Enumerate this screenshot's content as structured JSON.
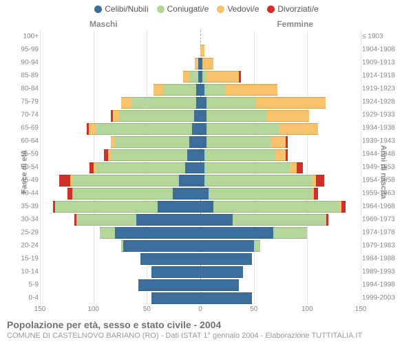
{
  "legend": {
    "items": [
      {
        "label": "Celibi/Nubili",
        "color": "#3b6e9b"
      },
      {
        "label": "Coniugati/e",
        "color": "#b4d69a"
      },
      {
        "label": "Vedovi/e",
        "color": "#f6c36a"
      },
      {
        "label": "Divorziati/e",
        "color": "#d02f2a"
      }
    ]
  },
  "gender": {
    "male": "Maschi",
    "female": "Femmine"
  },
  "axisLeftTitle": "Fasce di età",
  "axisRightTitle": "Anni di nascita",
  "xAxis": {
    "max": 150,
    "ticks": [
      150,
      100,
      50,
      0,
      50,
      100,
      150
    ]
  },
  "colors": {
    "single": "#3b6e9b",
    "married": "#b4d69a",
    "widowed": "#f6c36a",
    "divorced": "#d02f2a",
    "grid": "#e4e4e4",
    "center": "#aaaaaa"
  },
  "rows": [
    {
      "age": "100+",
      "birth": "≤ 1903",
      "m": {
        "single": 0,
        "married": 0,
        "widowed": 0,
        "divorced": 0
      },
      "f": {
        "single": 0,
        "married": 0,
        "widowed": 0,
        "divorced": 0
      }
    },
    {
      "age": "95-99",
      "birth": "1904-1908",
      "m": {
        "single": 0,
        "married": 0,
        "widowed": 0,
        "divorced": 0
      },
      "f": {
        "single": 0,
        "married": 0,
        "widowed": 4,
        "divorced": 0
      }
    },
    {
      "age": "90-94",
      "birth": "1909-1913",
      "m": {
        "single": 2,
        "married": 0,
        "widowed": 3,
        "divorced": 0
      },
      "f": {
        "single": 2,
        "married": 0,
        "widowed": 10,
        "divorced": 0
      }
    },
    {
      "age": "85-89",
      "birth": "1914-1918",
      "m": {
        "single": 2,
        "married": 8,
        "widowed": 6,
        "divorced": 0
      },
      "f": {
        "single": 2,
        "married": 4,
        "widowed": 30,
        "divorced": 2
      }
    },
    {
      "age": "80-84",
      "birth": "1919-1923",
      "m": {
        "single": 4,
        "married": 30,
        "widowed": 10,
        "divorced": 0
      },
      "f": {
        "single": 4,
        "married": 20,
        "widowed": 48,
        "divorced": 0
      }
    },
    {
      "age": "75-79",
      "birth": "1924-1928",
      "m": {
        "single": 4,
        "married": 60,
        "widowed": 10,
        "divorced": 0
      },
      "f": {
        "single": 6,
        "married": 46,
        "widowed": 65,
        "divorced": 0
      }
    },
    {
      "age": "70-74",
      "birth": "1929-1933",
      "m": {
        "single": 6,
        "married": 70,
        "widowed": 6,
        "divorced": 2
      },
      "f": {
        "single": 6,
        "married": 56,
        "widowed": 40,
        "divorced": 0
      }
    },
    {
      "age": "65-69",
      "birth": "1934-1938",
      "m": {
        "single": 8,
        "married": 90,
        "widowed": 6,
        "divorced": 2
      },
      "f": {
        "single": 6,
        "married": 68,
        "widowed": 36,
        "divorced": 0
      }
    },
    {
      "age": "60-64",
      "birth": "1939-1943",
      "m": {
        "single": 10,
        "married": 70,
        "widowed": 4,
        "divorced": 0
      },
      "f": {
        "single": 6,
        "married": 60,
        "widowed": 14,
        "divorced": 2
      }
    },
    {
      "age": "55-59",
      "birth": "1944-1948",
      "m": {
        "single": 12,
        "married": 72,
        "widowed": 2,
        "divorced": 4
      },
      "f": {
        "single": 4,
        "married": 66,
        "widowed": 10,
        "divorced": 2
      }
    },
    {
      "age": "50-54",
      "birth": "1949-1953",
      "m": {
        "single": 14,
        "married": 84,
        "widowed": 2,
        "divorced": 4
      },
      "f": {
        "single": 4,
        "married": 80,
        "widowed": 6,
        "divorced": 6
      }
    },
    {
      "age": "45-49",
      "birth": "1954-1958",
      "m": {
        "single": 20,
        "married": 100,
        "widowed": 2,
        "divorced": 10
      },
      "f": {
        "single": 4,
        "married": 100,
        "widowed": 4,
        "divorced": 8
      }
    },
    {
      "age": "40-44",
      "birth": "1959-1963",
      "m": {
        "single": 26,
        "married": 94,
        "widowed": 0,
        "divorced": 4
      },
      "f": {
        "single": 8,
        "married": 96,
        "widowed": 2,
        "divorced": 4
      }
    },
    {
      "age": "35-39",
      "birth": "1964-1968",
      "m": {
        "single": 40,
        "married": 96,
        "widowed": 0,
        "divorced": 2
      },
      "f": {
        "single": 12,
        "married": 118,
        "widowed": 2,
        "divorced": 4
      }
    },
    {
      "age": "30-34",
      "birth": "1969-1973",
      "m": {
        "single": 60,
        "married": 56,
        "widowed": 0,
        "divorced": 2
      },
      "f": {
        "single": 30,
        "married": 88,
        "widowed": 0,
        "divorced": 2
      }
    },
    {
      "age": "25-29",
      "birth": "1974-1978",
      "m": {
        "single": 80,
        "married": 14,
        "widowed": 0,
        "divorced": 0
      },
      "f": {
        "single": 68,
        "married": 32,
        "widowed": 0,
        "divorced": 0
      }
    },
    {
      "age": "20-24",
      "birth": "1979-1983",
      "m": {
        "single": 72,
        "married": 2,
        "widowed": 0,
        "divorced": 0
      },
      "f": {
        "single": 50,
        "married": 6,
        "widowed": 0,
        "divorced": 0
      }
    },
    {
      "age": "15-19",
      "birth": "1984-1988",
      "m": {
        "single": 56,
        "married": 0,
        "widowed": 0,
        "divorced": 0
      },
      "f": {
        "single": 48,
        "married": 0,
        "widowed": 0,
        "divorced": 0
      }
    },
    {
      "age": "10-14",
      "birth": "1989-1993",
      "m": {
        "single": 46,
        "married": 0,
        "widowed": 0,
        "divorced": 0
      },
      "f": {
        "single": 40,
        "married": 0,
        "widowed": 0,
        "divorced": 0
      }
    },
    {
      "age": "5-9",
      "birth": "1994-1998",
      "m": {
        "single": 58,
        "married": 0,
        "widowed": 0,
        "divorced": 0
      },
      "f": {
        "single": 36,
        "married": 0,
        "widowed": 0,
        "divorced": 0
      }
    },
    {
      "age": "0-4",
      "birth": "1999-2003",
      "m": {
        "single": 46,
        "married": 0,
        "widowed": 0,
        "divorced": 0
      },
      "f": {
        "single": 48,
        "married": 0,
        "widowed": 0,
        "divorced": 0
      }
    }
  ],
  "footer": {
    "title": "Popolazione per età, sesso e stato civile - 2004",
    "sub": "COMUNE DI CASTELNOVO BARIANO (RO) - Dati ISTAT 1° gennaio 2004 - Elaborazione TUTTITALIA.IT"
  }
}
